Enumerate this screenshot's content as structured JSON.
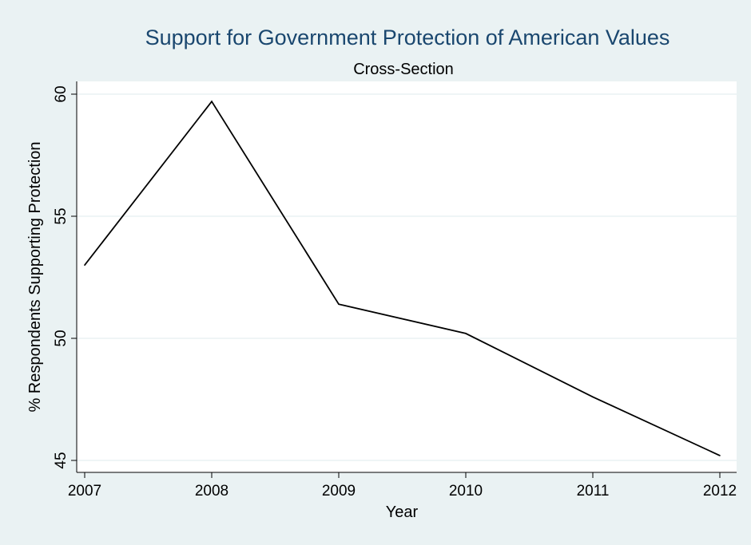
{
  "colors": {
    "background": "#eaf2f3",
    "plot_area": "#ffffff",
    "title": "#1a476f",
    "gridline": "#eaf2f3",
    "line": "#000000"
  },
  "chart_data": {
    "type": "line",
    "title": "Support for Government Protection of American Values",
    "subtitle": "Cross-Section",
    "xlabel": "Year",
    "ylabel": "% Respondents Supporting Protection",
    "x": [
      2007,
      2008,
      2009,
      2010,
      2011,
      2012
    ],
    "xticks": [
      "2007",
      "2008",
      "2009",
      "2010",
      "2011",
      "2012"
    ],
    "yticks": [
      "45",
      "50",
      "55",
      "60"
    ],
    "ylim": [
      44.8,
      60.5
    ],
    "grid": true,
    "legend": "none",
    "series": [
      {
        "values": [
          53.0,
          59.7,
          51.4,
          50.2,
          47.6,
          45.2
        ]
      }
    ]
  }
}
